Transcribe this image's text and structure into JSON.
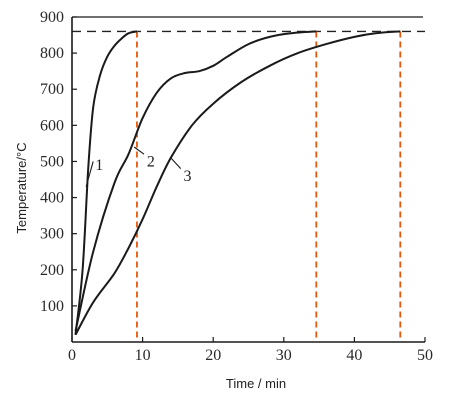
{
  "chart_data": {
    "type": "line",
    "xlabel": "Time / min",
    "ylabel": "Temperature/°C",
    "xlim": [
      0,
      50
    ],
    "ylim": [
      0,
      900
    ],
    "xticks": [
      0,
      10,
      20,
      30,
      40,
      50
    ],
    "yticks": [
      100,
      200,
      300,
      400,
      500,
      600,
      700,
      800,
      900
    ],
    "grid": false,
    "legend": "none",
    "reference_line": {
      "y": 860,
      "style": "dashed"
    },
    "markers": [
      {
        "x": 9.2,
        "color": "#e8580c"
      },
      {
        "x": 34.6,
        "color": "#e8580c"
      },
      {
        "x": 46.5,
        "color": "#e8580c"
      }
    ],
    "series": [
      {
        "label": "1",
        "x": [
          0.5,
          1.5,
          2.3,
          3,
          4,
          5,
          6,
          7,
          8,
          9.2
        ],
        "y": [
          20,
          200,
          480,
          650,
          740,
          790,
          820,
          840,
          855,
          860
        ]
      },
      {
        "label": "2",
        "x": [
          0.5,
          3,
          6,
          8,
          10,
          12,
          14,
          16,
          18,
          20,
          22,
          25,
          28,
          31,
          34.6
        ],
        "y": [
          30,
          250,
          440,
          520,
          620,
          690,
          730,
          745,
          750,
          765,
          790,
          825,
          845,
          855,
          860
        ]
      },
      {
        "label": "3",
        "x": [
          0.5,
          3,
          6,
          8,
          10,
          12,
          14,
          17,
          20,
          24,
          28,
          32,
          36,
          40,
          43,
          46.5
        ],
        "y": [
          20,
          110,
          190,
          260,
          340,
          430,
          510,
          600,
          660,
          720,
          765,
          800,
          825,
          845,
          855,
          860
        ]
      }
    ]
  }
}
